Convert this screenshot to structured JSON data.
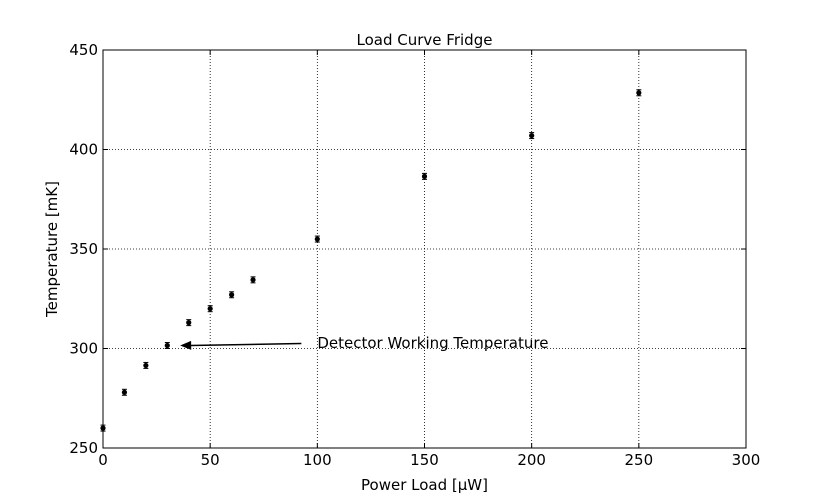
{
  "chart_data": {
    "type": "scatter",
    "title": "Load Curve Fridge",
    "xlabel": "Power Load [μW]",
    "ylabel": "Temperature [mK]",
    "xlim": [
      0,
      300
    ],
    "ylim": [
      250,
      450
    ],
    "xticks": [
      "0",
      "50",
      "100",
      "150",
      "200",
      "250",
      "300"
    ],
    "yticks": [
      "250",
      "300",
      "350",
      "400",
      "450"
    ],
    "grid": true,
    "series": [
      {
        "marker_color": "#000000",
        "points": [
          {
            "x": 0,
            "y": 260,
            "err": 1.5
          },
          {
            "x": 10,
            "y": 278,
            "err": 1.5
          },
          {
            "x": 20,
            "y": 291.5,
            "err": 1.5
          },
          {
            "x": 30,
            "y": 301.5,
            "err": 1.5
          },
          {
            "x": 40,
            "y": 313,
            "err": 1.5
          },
          {
            "x": 50,
            "y": 320,
            "err": 1.5
          },
          {
            "x": 60,
            "y": 327,
            "err": 1.5
          },
          {
            "x": 70,
            "y": 334.5,
            "err": 1.5
          },
          {
            "x": 100,
            "y": 355,
            "err": 1.5
          },
          {
            "x": 150,
            "y": 386.5,
            "err": 1.5
          },
          {
            "x": 200,
            "y": 407,
            "err": 1.5
          },
          {
            "x": 250,
            "y": 428.5,
            "err": 1.5
          }
        ]
      }
    ],
    "annotation": {
      "text": "Detector Working Temperature",
      "arrow_tip": {
        "x": 36,
        "y": 301.5
      },
      "text_anchor": {
        "x": 100,
        "y": 302.5
      }
    }
  }
}
